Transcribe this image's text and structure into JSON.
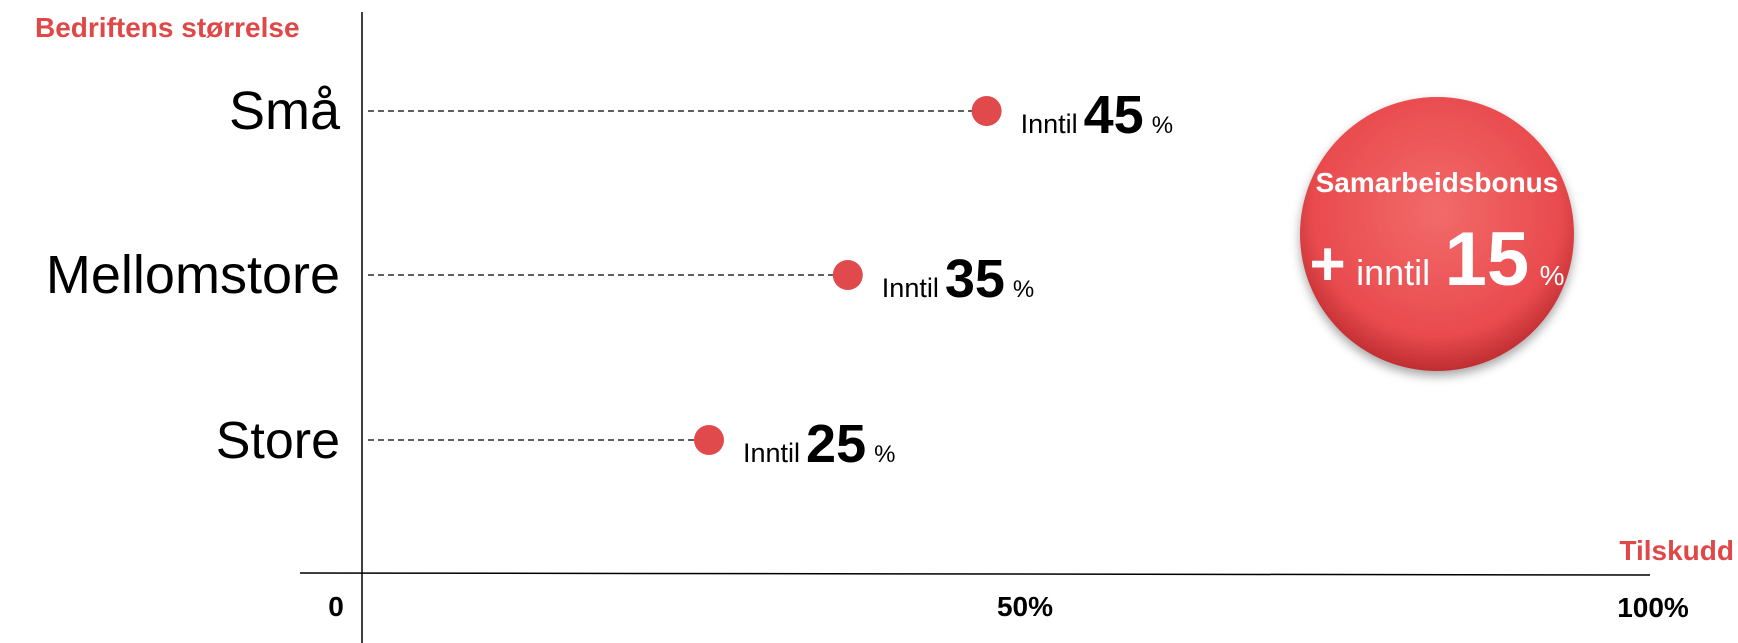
{
  "chart_data": {
    "type": "scatter",
    "ylabel": "Bedriftens størrelse",
    "xlabel": "Tilskudd",
    "xlim": [
      0,
      100
    ],
    "x_ticks": [
      "0",
      "50%",
      "100%"
    ],
    "categories": [
      "Små",
      "Mellomstore",
      "Store"
    ],
    "values": [
      45,
      35,
      25
    ],
    "point_labels": [
      {
        "prefix": "Inntil",
        "value": "45",
        "unit": "%"
      },
      {
        "prefix": "Inntil",
        "value": "35",
        "unit": "%"
      },
      {
        "prefix": "Inntil",
        "value": "25",
        "unit": "%"
      }
    ],
    "bonus": {
      "title": "Samarbeidsbonus",
      "plus": "+",
      "prefix": "inntil",
      "value": "15",
      "unit": "%"
    },
    "colors": {
      "accent": "#e04848",
      "point": "#e04a4c",
      "axis": "#000000"
    }
  }
}
